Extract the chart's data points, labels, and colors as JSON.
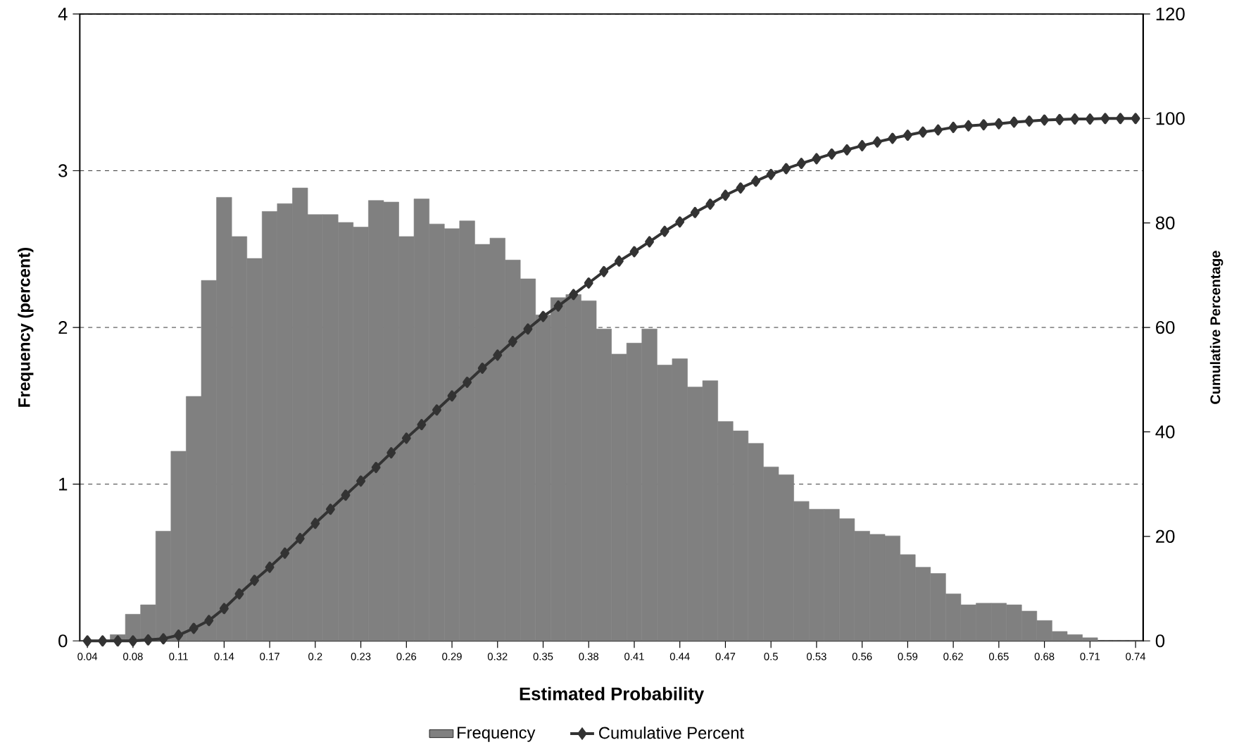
{
  "chart_data": {
    "type": "bar",
    "xlabel": "Estimated Probability",
    "ylabel": "Frequency (percent)",
    "y2label": "Cumulative Percentage",
    "categories": [
      "0.04",
      null,
      null,
      "0.08",
      null,
      null,
      "0.11",
      null,
      null,
      "0.14",
      null,
      null,
      "0.17",
      null,
      null,
      "0.2",
      null,
      null,
      "0.23",
      null,
      null,
      "0.26",
      null,
      null,
      "0.29",
      null,
      null,
      "0.32",
      null,
      null,
      "0.35",
      null,
      null,
      "0.38",
      null,
      null,
      "0.41",
      null,
      null,
      "0.44",
      null,
      null,
      "0.47",
      null,
      null,
      "0.5",
      null,
      null,
      "0.53",
      null,
      null,
      "0.56",
      null,
      null,
      "0.59",
      null,
      null,
      "0.62",
      null,
      null,
      "0.65",
      null,
      null,
      "0.68",
      null,
      null,
      "0.71",
      null,
      null,
      "0.74"
    ],
    "series": [
      {
        "name": "Frequency",
        "color": "#808080",
        "values": [
          0,
          0,
          0.04,
          0.17,
          0.23,
          0.7,
          1.21,
          1.56,
          2.3,
          2.83,
          2.58,
          2.44,
          2.74,
          2.79,
          2.89,
          2.72,
          2.72,
          2.67,
          2.64,
          2.81,
          2.8,
          2.58,
          2.82,
          2.66,
          2.63,
          2.68,
          2.53,
          2.57,
          2.43,
          2.31,
          2.08,
          2.19,
          2.21,
          2.17,
          1.99,
          1.83,
          1.9,
          1.99,
          1.76,
          1.8,
          1.62,
          1.66,
          1.4,
          1.34,
          1.26,
          1.11,
          1.06,
          0.89,
          0.84,
          0.84,
          0.78,
          0.7,
          0.68,
          0.67,
          0.55,
          0.47,
          0.43,
          0.3,
          0.23,
          0.24,
          0.24,
          0.23,
          0.19,
          0.13,
          0.06,
          0.04,
          0.02,
          0,
          0,
          0
        ]
      },
      {
        "name": "Cumulative Percent",
        "type": "line",
        "axis": "y2",
        "color": "#333333",
        "values": [
          0,
          0,
          0,
          0,
          0.2,
          0.4,
          1.1,
          2.4,
          3.9,
          6.2,
          9.0,
          11.6,
          14.1,
          16.8,
          19.6,
          22.5,
          25.2,
          27.9,
          30.6,
          33.2,
          36.0,
          38.8,
          41.4,
          44.2,
          46.9,
          49.5,
          52.2,
          54.7,
          57.3,
          59.7,
          62.1,
          64.1,
          66.3,
          68.5,
          70.7,
          72.7,
          74.5,
          76.4,
          78.4,
          80.2,
          82.0,
          83.6,
          85.3,
          86.7,
          88.0,
          89.3,
          90.4,
          91.4,
          92.3,
          93.2,
          94.0,
          94.8,
          95.5,
          96.2,
          96.8,
          97.4,
          97.8,
          98.3,
          98.6,
          98.8,
          99.0,
          99.3,
          99.5,
          99.7,
          99.8,
          99.9,
          99.9,
          100,
          100,
          100
        ]
      }
    ],
    "ylim": [
      0,
      4
    ],
    "yticks": [
      0,
      1,
      2,
      3,
      4
    ],
    "y2lim": [
      0,
      120
    ],
    "y2ticks": [
      0,
      20,
      40,
      60,
      80,
      100,
      120
    ],
    "grid": "y",
    "legend": "bottom",
    "marker": "diamond",
    "line_style": "solid"
  }
}
